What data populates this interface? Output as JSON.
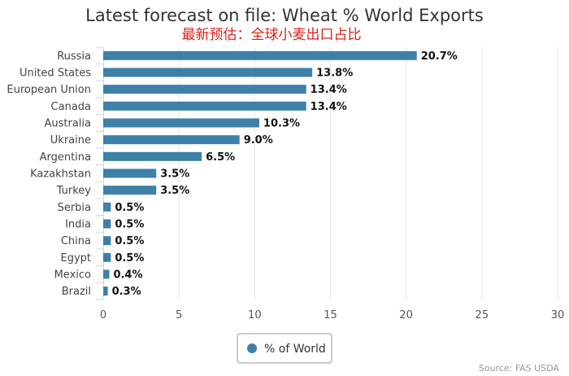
{
  "chart_data": {
    "type": "bar",
    "orientation": "horizontal",
    "title": "Latest forecast on file: Wheat % World Exports",
    "subtitle": "最新预估：全球小麦出口占比",
    "categories": [
      "Russia",
      "United States",
      "European Union",
      "Canada",
      "Australia",
      "Ukraine",
      "Argentina",
      "Kazakhstan",
      "Turkey",
      "Serbia",
      "India",
      "China",
      "Egypt",
      "Mexico",
      "Brazil"
    ],
    "series": [
      {
        "name": "% of World",
        "values": [
          20.7,
          13.8,
          13.4,
          13.4,
          10.3,
          9.0,
          6.5,
          3.5,
          3.5,
          0.5,
          0.5,
          0.5,
          0.5,
          0.4,
          0.3
        ],
        "labels": [
          "20.7%",
          "13.8%",
          "13.4%",
          "13.4%",
          "10.3%",
          "9.0%",
          "6.5%",
          "3.5%",
          "3.5%",
          "0.5%",
          "0.5%",
          "0.5%",
          "0.5%",
          "0.4%",
          "0.3%"
        ]
      }
    ],
    "xlabel": "",
    "ylabel": "",
    "xlim": [
      0,
      30
    ],
    "xticks": [
      0,
      5,
      10,
      15,
      20,
      25,
      30
    ],
    "xtick_labels": [
      "0",
      "5",
      "10",
      "15",
      "20",
      "25",
      "30"
    ],
    "grid": true,
    "legend_position": "bottom-center",
    "credits": "Source: FAS USDA",
    "colors": {
      "bar": "#3d80a8",
      "grid": "#e6e6e6",
      "subtitle": "#e0201b"
    }
  }
}
